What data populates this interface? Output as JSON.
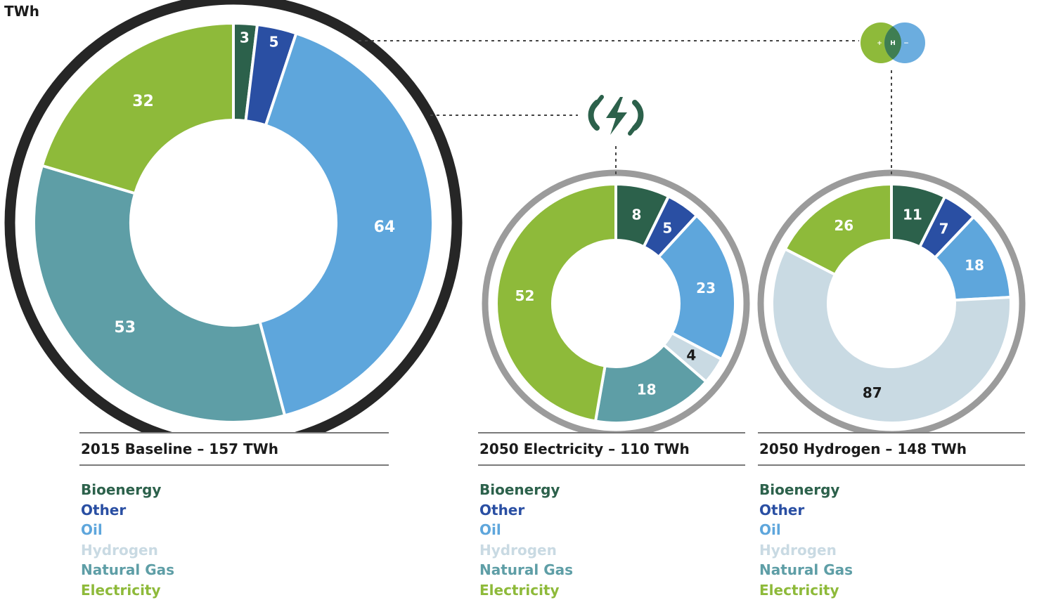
{
  "unit_label": "TWh",
  "colors": {
    "Bioenergy": "#2c614b",
    "Other": "#2a4fa3",
    "Oil": "#5ea6dc",
    "Hydrogen": "#c9dae3",
    "Natural Gas": "#5e9ea6",
    "Electricity": "#8eba3a",
    "label_light": "#ffffff",
    "label_dark": "#1b1b1b",
    "ring_baseline": "#262626",
    "ring_scenario": "#9b9b9b",
    "connector": "#444444",
    "icon_green": "#2c614b",
    "hydrogen_icon_left": "#8eba3a",
    "hydrogen_icon_right": "#5ea6dc"
  },
  "icons": {
    "electricity": "lightning-bolt-icon",
    "hydrogen": "hydrogen-molecule-icon"
  },
  "hydrogen_icon_text": {
    "plus": "+",
    "h": "H",
    "minus": "−"
  },
  "chart_data": [
    {
      "type": "donut",
      "title": "2015 Baseline – 157 TWh",
      "categories": [
        "Bioenergy",
        "Other",
        "Oil",
        "Hydrogen",
        "Natural Gas",
        "Electricity"
      ],
      "values": [
        3,
        5,
        64,
        0,
        53,
        32
      ],
      "unit": "TWh"
    },
    {
      "type": "donut",
      "title": "2050 Electricity – 110 TWh",
      "categories": [
        "Bioenergy",
        "Other",
        "Oil",
        "Hydrogen",
        "Natural Gas",
        "Electricity"
      ],
      "values": [
        8,
        5,
        23,
        4,
        18,
        52
      ],
      "unit": "TWh"
    },
    {
      "type": "donut",
      "title": "2050 Hydrogen – 148 TWh",
      "categories": [
        "Bioenergy",
        "Other",
        "Oil",
        "Hydrogen",
        "Natural Gas",
        "Electricity"
      ],
      "values": [
        11,
        7,
        18,
        87,
        0,
        26
      ],
      "unit": "TWh"
    }
  ]
}
